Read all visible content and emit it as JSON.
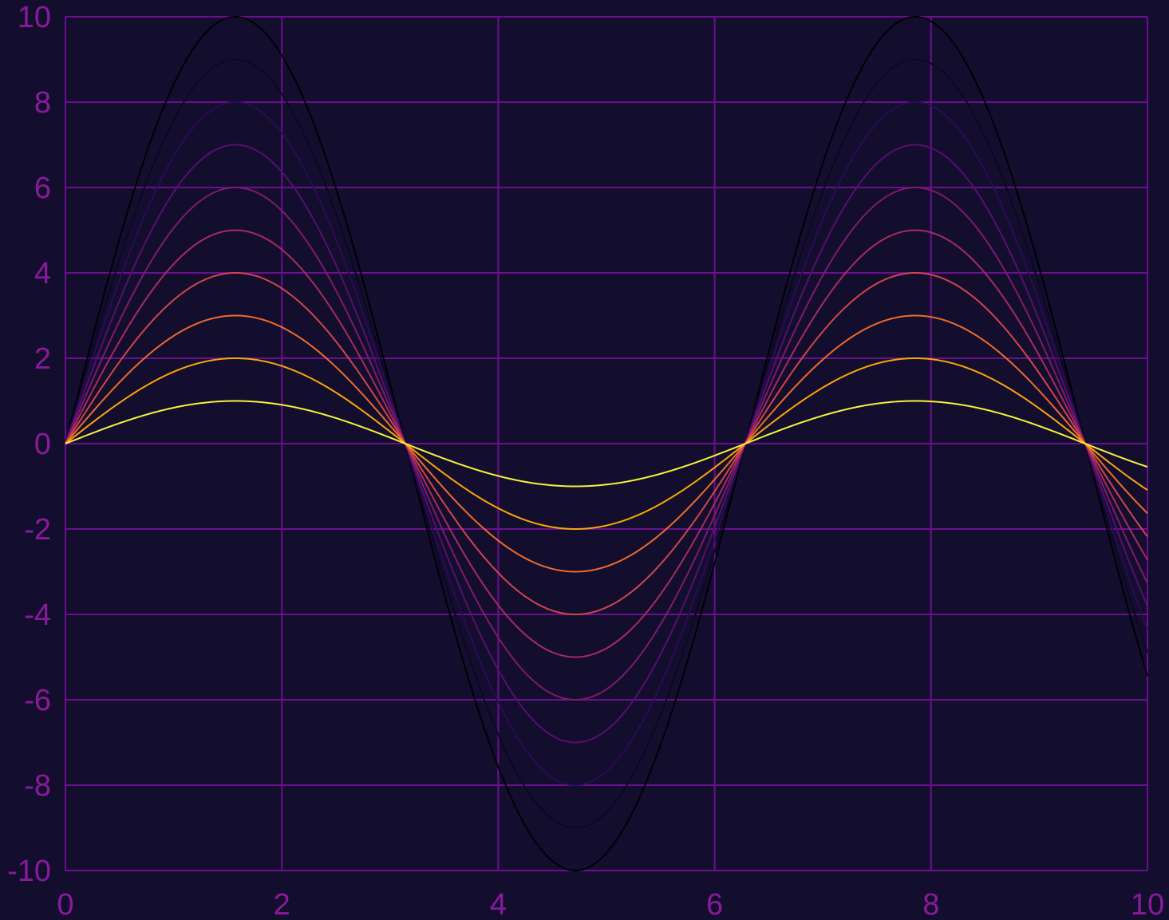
{
  "colors": {
    "background": "#130e2e",
    "grid": "#6b0f8f",
    "tick_text": "#8a1a9c"
  },
  "chart_data": {
    "type": "line",
    "title": "",
    "xlabel": "",
    "ylabel": "",
    "xlim": [
      0,
      10
    ],
    "ylim": [
      -10,
      10
    ],
    "grid": true,
    "legend": "none",
    "x_ticks": [
      "0",
      "2",
      "4",
      "6",
      "8",
      "10"
    ],
    "y_ticks": [
      "10",
      "8",
      "6",
      "4",
      "2",
      "0",
      "-2",
      "-4",
      "-6",
      "-8",
      "-10"
    ],
    "function": "amplitude * sin(x)",
    "series": [
      {
        "amplitude": 10,
        "color": "#000004"
      },
      {
        "amplitude": 9,
        "color": "#0b0724"
      },
      {
        "amplitude": 8,
        "color": "#2c0a55"
      },
      {
        "amplitude": 7,
        "color": "#55106e"
      },
      {
        "amplitude": 6,
        "color": "#7e1a6e"
      },
      {
        "amplitude": 5,
        "color": "#a72b5f"
      },
      {
        "amplitude": 4,
        "color": "#d1454b"
      },
      {
        "amplitude": 3,
        "color": "#ef6a2c"
      },
      {
        "amplitude": 2,
        "color": "#fca50a"
      },
      {
        "amplitude": 1,
        "color": "#f6f33c"
      }
    ]
  }
}
